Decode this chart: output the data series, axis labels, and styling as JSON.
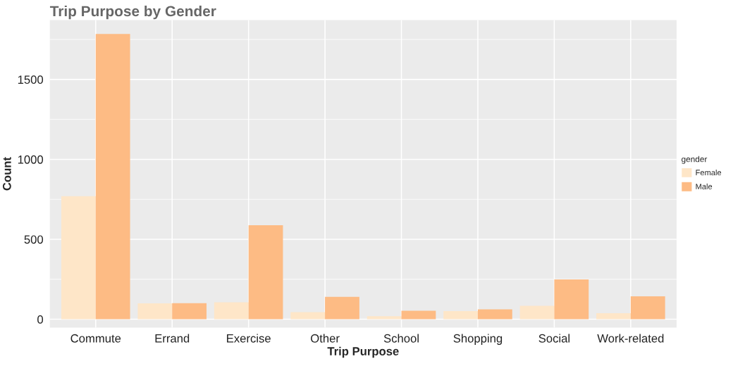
{
  "chart_data": {
    "type": "bar",
    "title": "Trip Purpose by Gender",
    "xlabel": "Trip Purpose",
    "ylabel": "Count",
    "legend_title": "gender",
    "categories": [
      "Commute",
      "Errand",
      "Exercise",
      "Other",
      "School",
      "Shopping",
      "Social",
      "Work-related"
    ],
    "series": [
      {
        "name": "Female",
        "color": "#fee6c8",
        "values": [
          770,
          99,
          106,
          44,
          19,
          51,
          84,
          38
        ]
      },
      {
        "name": "Male",
        "color": "#fdbb84",
        "values": [
          1785,
          100,
          588,
          140,
          53,
          62,
          249,
          143
        ]
      }
    ],
    "ylim": [
      -52,
      1871
    ],
    "yticks": [
      0,
      500,
      1000,
      1500
    ],
    "grid": true,
    "legend": "right"
  }
}
